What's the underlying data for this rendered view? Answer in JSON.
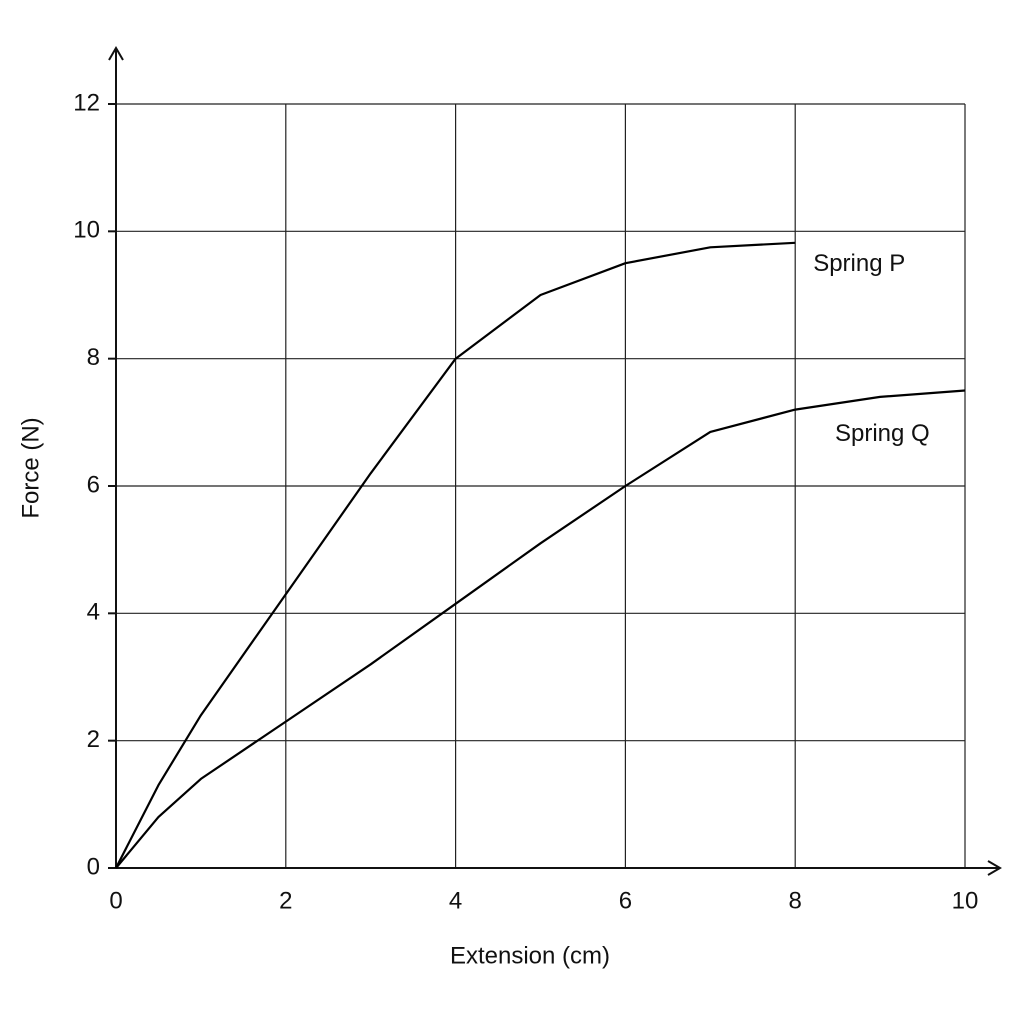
{
  "chart_data": {
    "type": "line",
    "x_label": "Extension (cm)",
    "y_label": "Force (N)",
    "x": [
      0,
      0.5,
      1,
      2,
      3,
      4,
      5,
      6,
      7,
      8,
      9,
      10
    ],
    "series": [
      {
        "name": "Spring P",
        "color": "#000000",
        "values": [
          0,
          1.3,
          2.4,
          4.3,
          6.2,
          8,
          9.0,
          9.5,
          9.75,
          9.82,
          null,
          null
        ]
      },
      {
        "name": "Spring Q",
        "color": "#000000",
        "values": [
          0,
          0.8,
          1.4,
          2.3,
          3.2,
          4.15,
          5.1,
          6,
          6.85,
          7.2,
          7.4,
          7.5
        ]
      }
    ],
    "xlim": [
      0,
      10
    ],
    "xticks": [
      0,
      2,
      4,
      6,
      8,
      10
    ],
    "ylim": [
      0,
      12
    ],
    "yticks": [
      0,
      2,
      4,
      6,
      8,
      10,
      12
    ],
    "grid": true
  }
}
